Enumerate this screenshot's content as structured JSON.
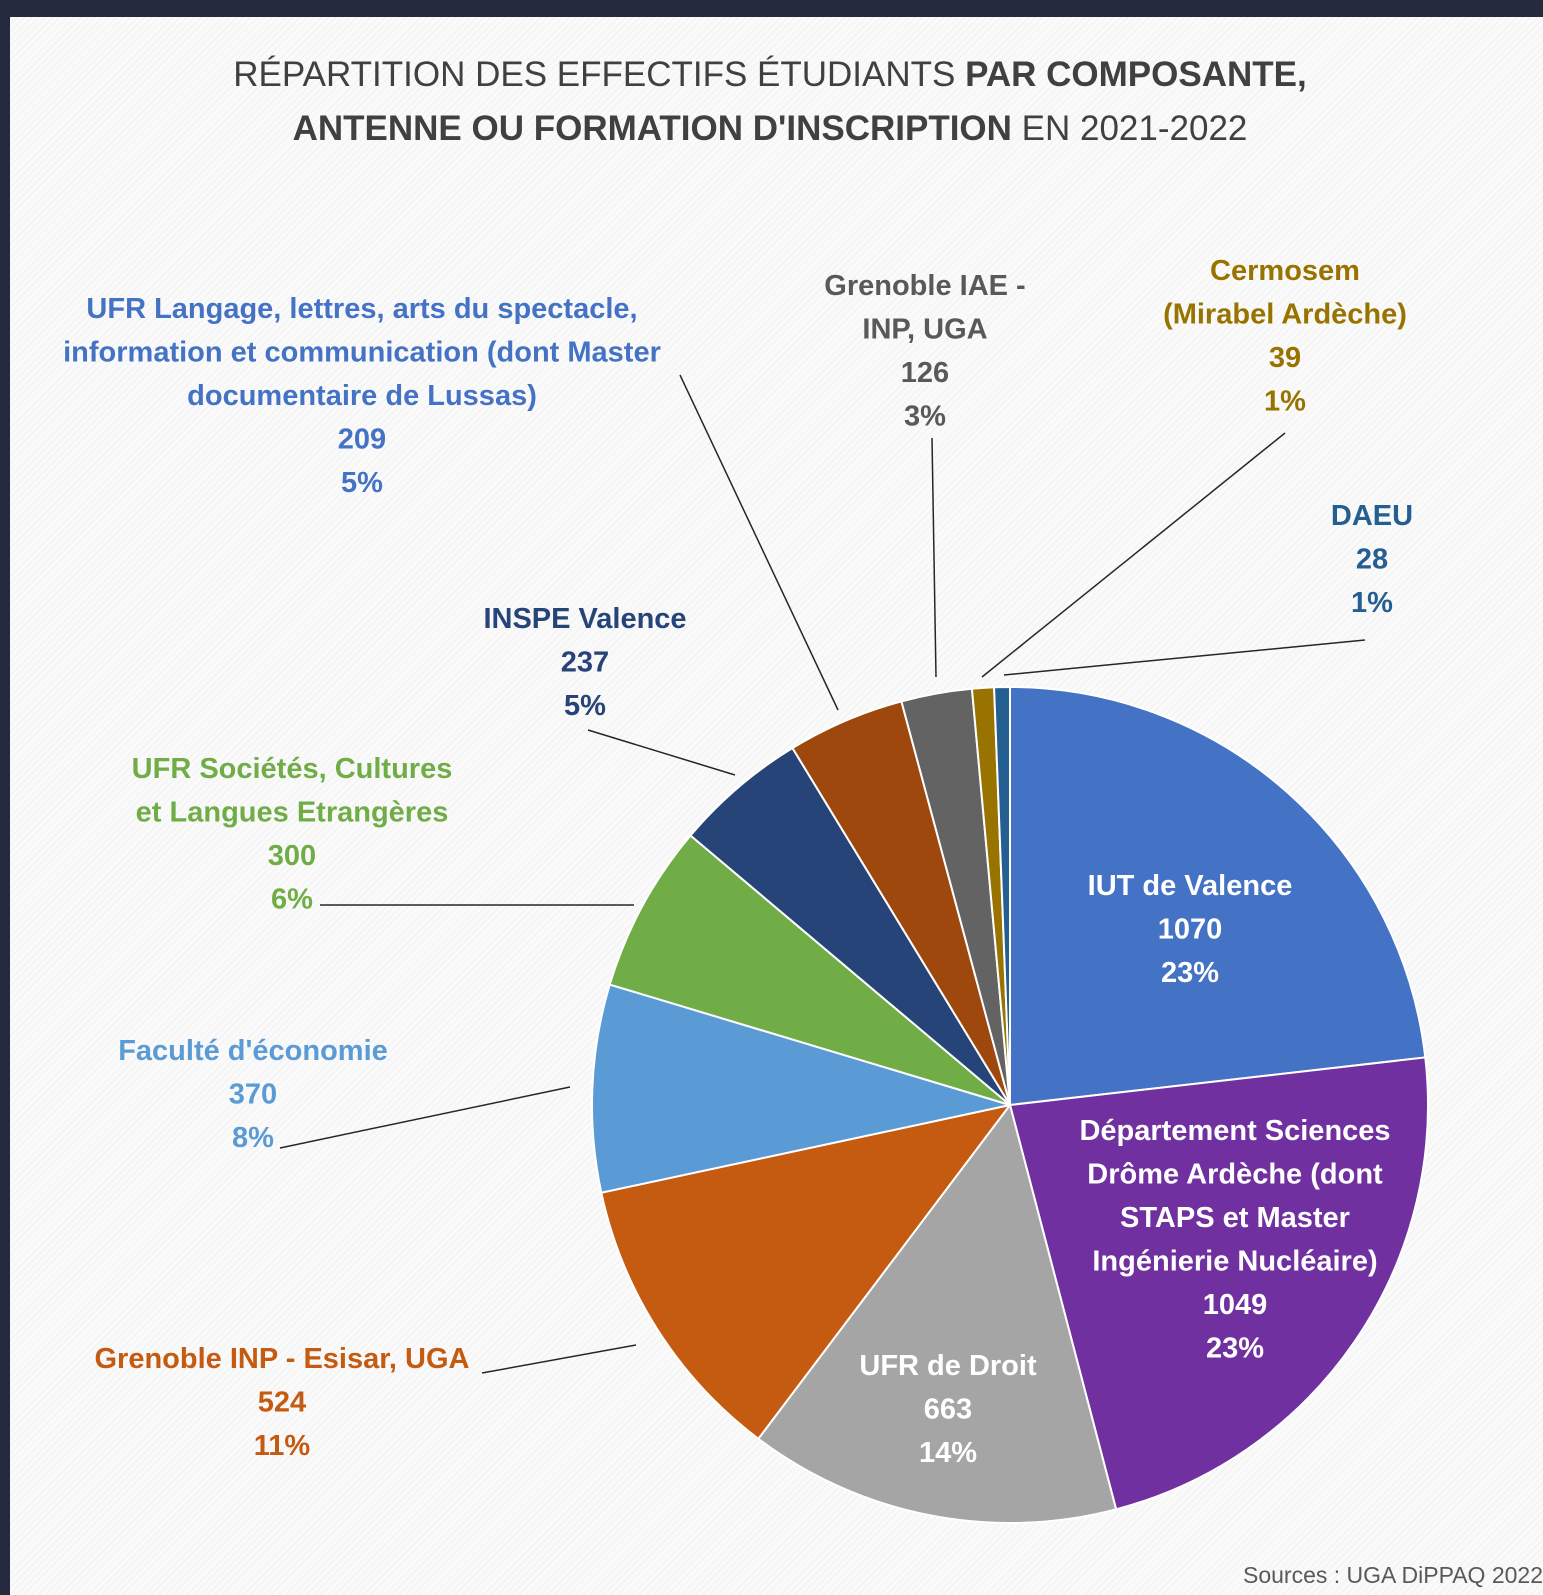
{
  "title": {
    "line1_plain": "RÉPARTITION DES EFFECTIFS ÉTUDIANTS ",
    "line1_bold": "PAR COMPOSANTE,",
    "line2_bold": "ANTENNE OU FORMATION D'INSCRIPTION",
    "line2_plain": " EN 2021-2022"
  },
  "source": "Sources : UGA DiPPAQ 2022",
  "chart_data": {
    "type": "pie",
    "title": "RÉPARTITION DES EFFECTIFS ÉTUDIANTS PAR COMPOSANTE, ANTENNE OU FORMATION D'INSCRIPTION EN 2021-2022",
    "start": "12 o'clock, clockwise",
    "slices": [
      {
        "label": [
          "IUT de Valence"
        ],
        "value": 1070,
        "percent": "23%",
        "color": "#4472c4",
        "label_color": "#ffffff"
      },
      {
        "label": [
          "Département Sciences",
          "Drôme Ardèche (dont",
          "STAPS et Master",
          "Ingénierie Nucléaire)"
        ],
        "value": 1049,
        "percent": "23%",
        "color": "#7030a0",
        "label_color": "#ffffff"
      },
      {
        "label": [
          "UFR de Droit"
        ],
        "value": 663,
        "percent": "14%",
        "color": "#a5a5a5",
        "label_color": "#ffffff"
      },
      {
        "label": [
          "Grenoble INP - Esisar, UGA"
        ],
        "value": 524,
        "percent": "11%",
        "color": "#c55a11",
        "label_color": "#c55a11"
      },
      {
        "label": [
          "Faculté d'économie"
        ],
        "value": 370,
        "percent": "8%",
        "color": "#5b9bd5",
        "label_color": "#5b9bd5"
      },
      {
        "label": [
          "UFR Sociétés, Cultures",
          "et Langues Etrangères"
        ],
        "value": 300,
        "percent": "6%",
        "color": "#70ad47",
        "label_color": "#70ad47"
      },
      {
        "label": [
          "INSPE Valence"
        ],
        "value": 237,
        "percent": "5%",
        "color": "#264478",
        "label_color": "#264478"
      },
      {
        "label": [
          "UFR Langage, lettres, arts du spectacle,",
          "information et communication (dont Master",
          "documentaire de Lussas)"
        ],
        "value": 209,
        "percent": "5%",
        "color": "#9e480e",
        "label_color": "#4472c4"
      },
      {
        "label": [
          "Grenoble IAE -",
          "INP, UGA"
        ],
        "value": 126,
        "percent": "3%",
        "color": "#636363",
        "label_color": "#595959"
      },
      {
        "label": [
          "Cermosem",
          "(Mirabel Ardèche)"
        ],
        "value": 39,
        "percent": "1%",
        "color": "#997300",
        "label_color": "#997300"
      },
      {
        "label": [
          "DAEU"
        ],
        "value": 28,
        "percent": "1%",
        "color": "#255e91",
        "label_color": "#255e91"
      }
    ]
  }
}
